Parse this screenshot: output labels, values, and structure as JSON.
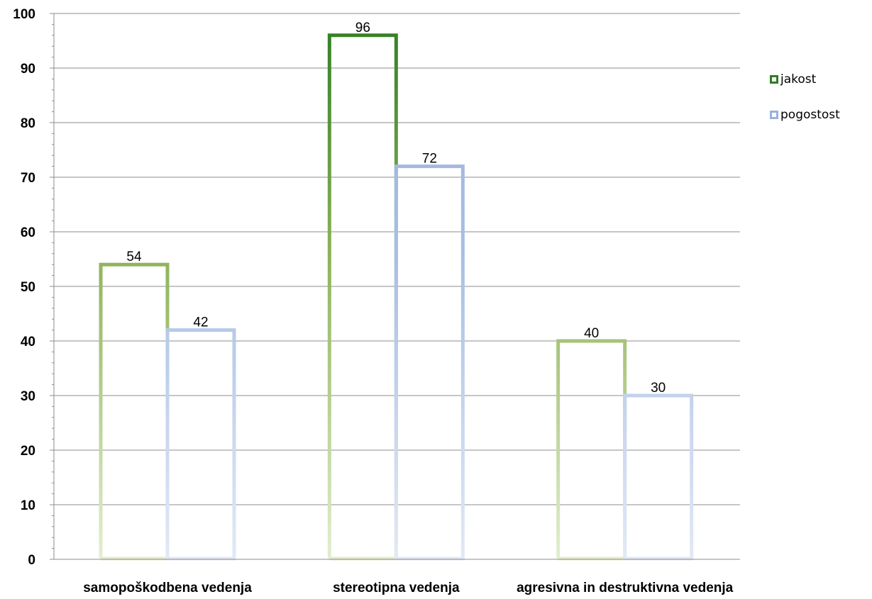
{
  "chart_data": {
    "type": "bar",
    "categories": [
      "samopoškodbena vedenja",
      "stereotipna vedenja",
      "agresivna in destruktivna vedenja"
    ],
    "series": [
      {
        "name": "jakost",
        "values": [
          54,
          96,
          40
        ],
        "color": "#8fb35a",
        "top_color": "#2e7d22",
        "fade_color": "#e3eecf"
      },
      {
        "name": "pogostost",
        "values": [
          42,
          72,
          30
        ],
        "color": "#a9bfe3",
        "top_color": "#97b2de",
        "fade_color": "#e2e9f6"
      }
    ],
    "ylim": [
      0,
      100
    ],
    "yticks": [
      "0",
      "10",
      "20",
      "30",
      "40",
      "50",
      "60",
      "70",
      "80",
      "90",
      "100"
    ],
    "grid": true,
    "legend": "right",
    "title": "",
    "xlabel": "",
    "ylabel": ""
  },
  "legend": {
    "items": [
      {
        "label": "jakost",
        "color": "#2e7d22"
      },
      {
        "label": "pogostost",
        "color": "#97b2de"
      }
    ]
  }
}
